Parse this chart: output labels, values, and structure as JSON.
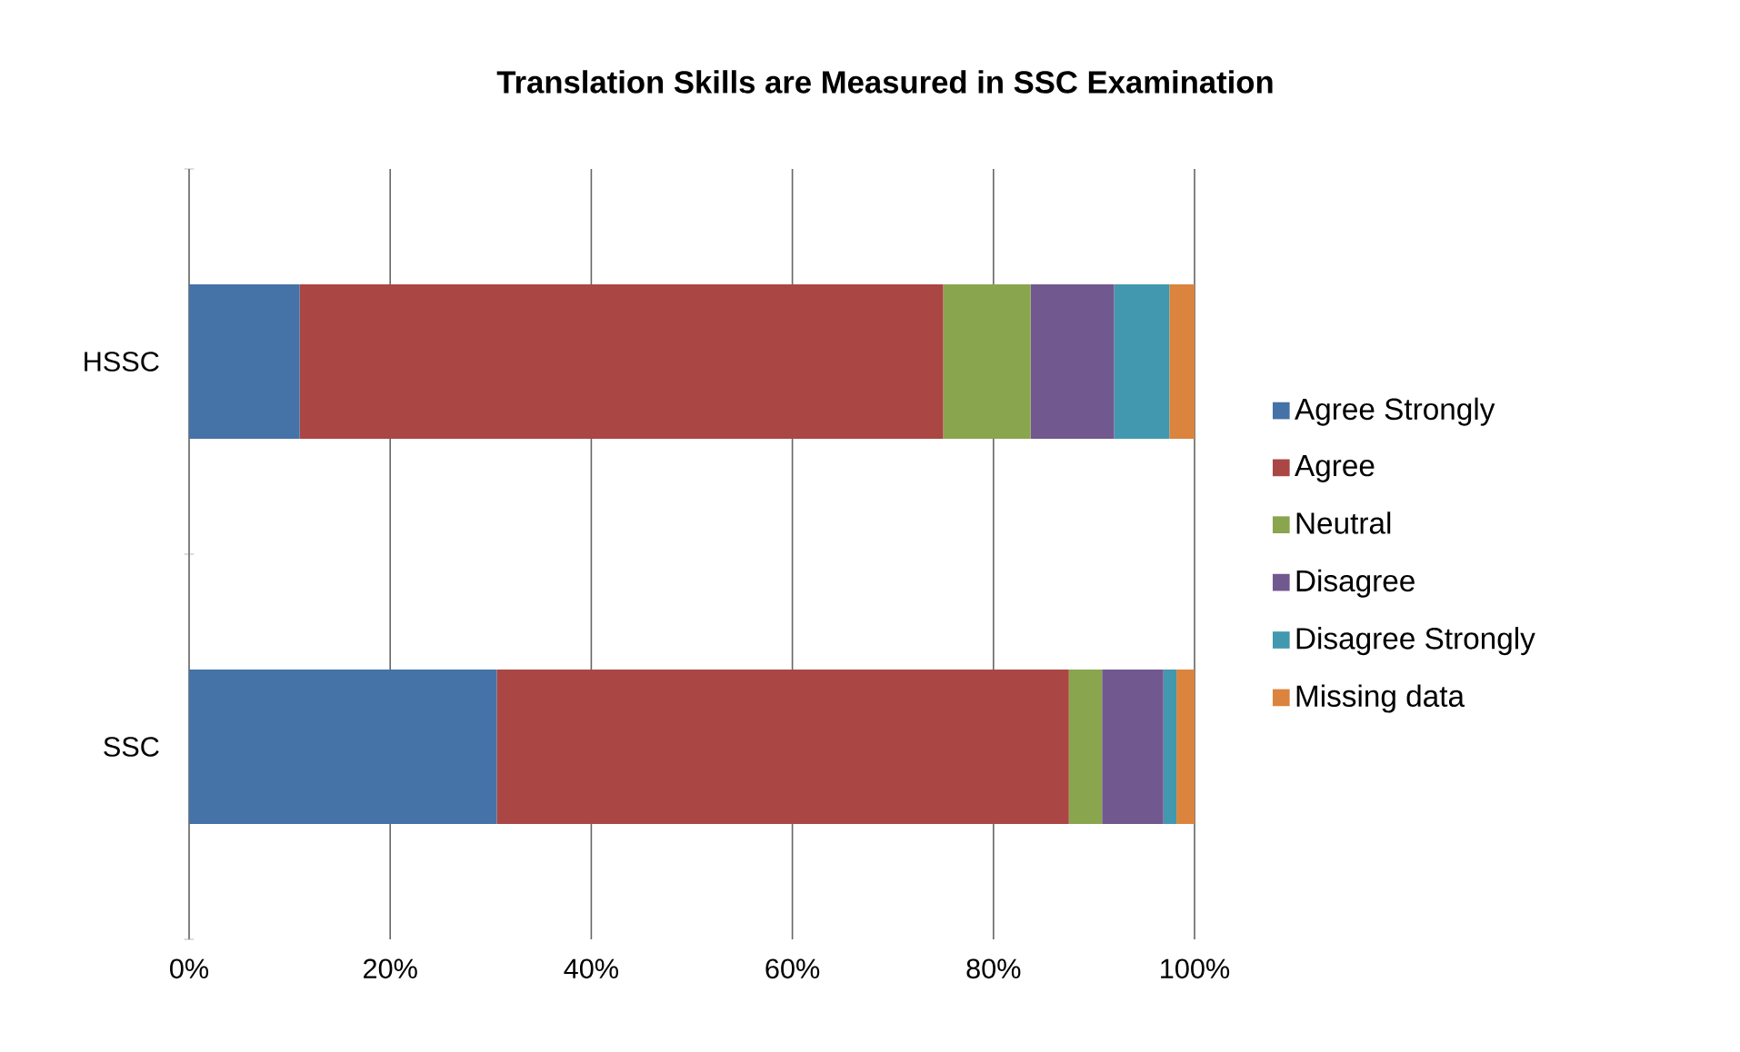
{
  "chart_data": {
    "type": "bar",
    "orientation": "horizontal",
    "stacked": true,
    "title": "Translation Skills are Measured in SSC Examination",
    "categories": [
      "HSSC",
      "SSC"
    ],
    "series": [
      {
        "name": "Agree Strongly",
        "color": "#4572a7",
        "values": [
          11.0,
          30.6
        ]
      },
      {
        "name": "Agree",
        "color": "#aa4643",
        "values": [
          64.0,
          56.9
        ]
      },
      {
        "name": "Neutral",
        "color": "#89a54e",
        "values": [
          8.7,
          3.3
        ]
      },
      {
        "name": "Disagree",
        "color": "#71588f",
        "values": [
          8.3,
          6.1
        ]
      },
      {
        "name": "Disagree Strongly",
        "color": "#4198af",
        "values": [
          5.5,
          1.3
        ]
      },
      {
        "name": "Missing data",
        "color": "#db843d",
        "values": [
          2.5,
          1.8
        ]
      }
    ],
    "xlim": [
      0,
      100
    ],
    "xticks": [
      {
        "value": 0,
        "label": "0%"
      },
      {
        "value": 20,
        "label": "20%"
      },
      {
        "value": 40,
        "label": "40%"
      },
      {
        "value": 60,
        "label": "60%"
      },
      {
        "value": 80,
        "label": "80%"
      },
      {
        "value": 100,
        "label": "100%"
      }
    ],
    "grid": "x",
    "legend": "right"
  }
}
